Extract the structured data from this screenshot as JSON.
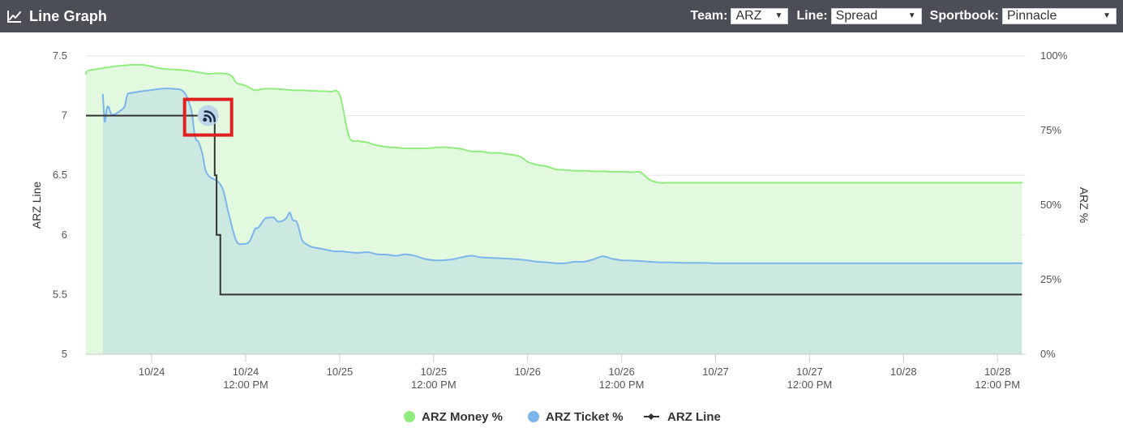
{
  "header": {
    "title": "Line Graph",
    "icon": "line-chart-icon",
    "team_label": "Team:",
    "team_value": "ARZ",
    "line_label": "Line:",
    "line_value": "Spread",
    "sportsbook_label": "Sportbook:",
    "sportsbook_value": "Pinnacle"
  },
  "chart_data": {
    "type": "line",
    "title": "",
    "xlabel": "",
    "ylabel": "ARZ Line",
    "y2label": "ARZ %",
    "ylim": [
      5,
      7.5
    ],
    "y2lim": [
      0,
      100
    ],
    "y_ticks": [
      "5",
      "5.5",
      "6",
      "6.5",
      "7",
      "7.5"
    ],
    "y2_ticks": [
      "0%",
      "25%",
      "50%",
      "75%",
      "100%"
    ],
    "x_ticks": [
      {
        "top": "10/24",
        "bottom": ""
      },
      {
        "top": "10/24",
        "bottom": "12:00 PM"
      },
      {
        "top": "10/25",
        "bottom": ""
      },
      {
        "top": "10/25",
        "bottom": "12:00 PM"
      },
      {
        "top": "10/26",
        "bottom": ""
      },
      {
        "top": "10/26",
        "bottom": "12:00 PM"
      },
      {
        "top": "10/27",
        "bottom": ""
      },
      {
        "top": "10/27",
        "bottom": "12:00 PM"
      },
      {
        "top": "10/28",
        "bottom": ""
      },
      {
        "top": "10/28",
        "bottom": "12:00 PM"
      }
    ],
    "grid": true,
    "legend_position": "bottom",
    "colors": {
      "money": "#90ed7d",
      "money_fill": "#e3f9df",
      "ticket": "#7cb5ec",
      "ticket_fill": "#cce9e1",
      "line": "#333333"
    },
    "series": [
      {
        "name": "ARZ Money %",
        "axis": "right",
        "x": [
          0,
          0.1,
          0.5,
          1,
          1.5,
          2,
          2.5,
          3,
          3.5,
          3.8,
          4,
          4.5,
          5,
          5.5,
          6,
          6.5,
          7,
          7.5,
          7.8,
          8,
          8.5,
          8.8,
          9,
          9.5,
          10,
          10.5,
          11,
          11.5,
          12,
          12.5,
          13,
          13.5,
          14,
          14.5,
          15,
          15.2,
          15.5,
          16,
          16.5,
          17,
          17.5,
          18,
          18.5,
          19,
          19.5,
          20,
          20.5,
          21,
          21.5,
          22,
          22.5,
          23,
          23.3,
          23.5,
          24,
          24.5,
          25,
          25.5,
          26,
          26.5,
          27,
          27.5,
          28,
          28.5,
          29,
          29.5,
          30,
          30.5,
          31,
          31.5,
          32,
          32.5,
          33,
          33.5,
          34,
          34.5,
          35,
          35.5,
          36,
          36.5,
          37,
          37.5,
          38,
          38.5,
          39,
          39.5,
          40,
          40.5,
          41,
          41.5,
          42,
          42.5,
          43,
          43.5,
          44,
          44.5,
          45,
          45.5,
          46,
          46.5,
          47,
          47.5,
          48,
          48.5,
          49,
          49.5,
          49.8
        ],
        "values": [
          94,
          95,
          95.5,
          96,
          96.5,
          96.8,
          97,
          97,
          96.5,
          96,
          95.8,
          95.5,
          95.3,
          95,
          94.5,
          94,
          94.2,
          94,
          93,
          91,
          90,
          89,
          88.5,
          89,
          89,
          88.8,
          88.5,
          88.5,
          88.3,
          88.2,
          88,
          87,
          73,
          71.5,
          71,
          70.5,
          70,
          69.5,
          69.3,
          69,
          69,
          69,
          69.2,
          69.4,
          69.2,
          68.8,
          68,
          68,
          67.5,
          67.5,
          67,
          66.5,
          65.5,
          64.5,
          63.5,
          63,
          62,
          61.8,
          61.5,
          61.5,
          61.3,
          61.3,
          61.2,
          61.2,
          61,
          61,
          58.5,
          57.5,
          57.5,
          57.5,
          57.5,
          57.5,
          57.5,
          57.5,
          57.5,
          57.5,
          57.5,
          57.5,
          57.5,
          57.5,
          57.5,
          57.5,
          57.5,
          57.5,
          57.5,
          57.5,
          57.5,
          57.5,
          57.5,
          57.5,
          57.5,
          57.5,
          57.5,
          57.5,
          57.5,
          57.5,
          57.5,
          57.5,
          57.5,
          57.5,
          57.5,
          57.5,
          57.5,
          57.5,
          57.5,
          57.5,
          57.5
        ]
      },
      {
        "name": "ARZ Ticket %",
        "axis": "right",
        "x": [
          0.9,
          1.0,
          1.1,
          1.2,
          1.35,
          1.55,
          1.8,
          2.05,
          2.2,
          2.35,
          2.8,
          3.4,
          4.0,
          4.6,
          5.2,
          5.6,
          5.8,
          6.0,
          6.2,
          6.35,
          6.5,
          6.7,
          7.0,
          7.3,
          7.6,
          8.0,
          8.4,
          8.7,
          9.0,
          9.15,
          9.35,
          9.55,
          9.75,
          10.0,
          10.2,
          10.5,
          10.7,
          10.85,
          11.0,
          11.2,
          11.35,
          11.5,
          11.7,
          12.0,
          12.4,
          12.8,
          13.2,
          13.6,
          14.0,
          14.5,
          15.0,
          15.5,
          16.0,
          16.5,
          17.0,
          17.5,
          18.0,
          18.5,
          19.0,
          19.5,
          20.0,
          20.5,
          21.0,
          21.5,
          22.0,
          22.5,
          23.0,
          23.5,
          24.0,
          24.5,
          25.0,
          25.5,
          26.0,
          26.5,
          27.0,
          27.5,
          28.0,
          28.5,
          29.0,
          29.5,
          30.0,
          30.5,
          31.0,
          31.5,
          32.0,
          32.5,
          33.0,
          33.5,
          34.0,
          34.5,
          35.0,
          35.5,
          36.0,
          36.5,
          37.0,
          37.5,
          38.0,
          38.5,
          39.0,
          39.5,
          40.0,
          40.5,
          41.0,
          41.5,
          42.0,
          42.5,
          43.0,
          43.5,
          44.0,
          44.5,
          45.0,
          45.5,
          46.0,
          46.5,
          47.0,
          47.5,
          48.0,
          48.5,
          49.0,
          49.5,
          49.8
        ],
        "values": [
          87,
          78,
          82,
          83,
          80.5,
          80.5,
          81.5,
          83,
          87,
          87.5,
          88,
          88.5,
          89,
          89,
          88,
          82,
          73,
          71,
          67,
          62,
          60,
          59,
          58,
          55,
          47,
          38,
          37,
          37.8,
          42,
          42.3,
          44,
          45.6,
          45.8,
          45.8,
          44.5,
          44.8,
          46,
          47.5,
          45,
          44.5,
          41.6,
          38.2,
          37,
          36,
          35.5,
          35,
          34.5,
          34.5,
          34.2,
          34,
          34.2,
          33.5,
          33.4,
          33,
          33.5,
          33,
          32,
          31.5,
          31.5,
          31.8,
          32.5,
          33,
          32.5,
          32.3,
          32.2,
          32,
          31.8,
          31.5,
          31,
          30.8,
          30.5,
          30.5,
          31,
          31,
          31.8,
          32.8,
          32,
          31.5,
          31.4,
          31.2,
          31,
          30.8,
          30.8,
          30.7,
          30.6,
          30.6,
          30.6,
          30.5,
          30.5,
          30.5,
          30.5,
          30.5,
          30.5,
          30.5,
          30.5,
          30.5,
          30.5,
          30.5,
          30.5,
          30.5,
          30.5,
          30.5,
          30.5,
          30.5,
          30.5,
          30.5,
          30.5,
          30.5,
          30.5,
          30.5,
          30.5,
          30.5,
          30.5,
          30.5,
          30.5,
          30.5,
          30.5,
          30.5,
          30.5,
          30.5,
          30.5
        ]
      },
      {
        "name": "ARZ Line",
        "axis": "left",
        "x": [
          0,
          6.5,
          6.5,
          6.85,
          6.85,
          6.95,
          6.95,
          7.15,
          7.15,
          7.3,
          7.3,
          49.8
        ],
        "values": [
          7,
          7,
          7,
          7,
          6.5,
          6.5,
          6,
          6,
          5.5,
          5.5,
          5.5,
          5.5
        ]
      }
    ],
    "annotations": [
      {
        "type": "icon",
        "name": "rss-feed-icon",
        "x": 6.5,
        "y": 7
      }
    ]
  },
  "legend": [
    {
      "label": "ARZ Money %",
      "color": "#90ed7d",
      "kind": "dot"
    },
    {
      "label": "ARZ Ticket %",
      "color": "#7cb5ec",
      "kind": "dot"
    },
    {
      "label": "ARZ Line",
      "color": "#333333",
      "kind": "line"
    }
  ]
}
